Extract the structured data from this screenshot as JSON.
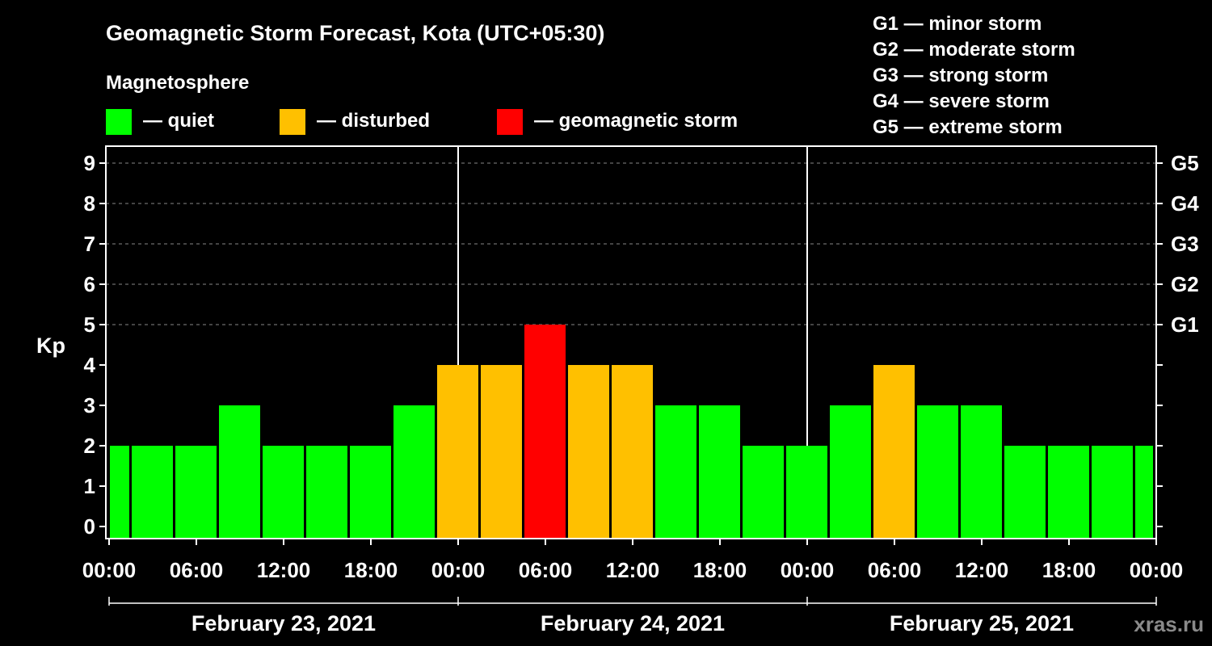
{
  "chart_data": {
    "type": "bar",
    "title": "Geomagnetic Storm Forecast, Kota (UTC+05:30)",
    "subtitle": "Magnetosphere",
    "ylabel": "Kp",
    "ylim": [
      0,
      9
    ],
    "y_ticks": [
      "0",
      "1",
      "2",
      "3",
      "4",
      "5",
      "6",
      "7",
      "8",
      "9"
    ],
    "right_axis_labels": [
      {
        "kp": 5,
        "label": "G1"
      },
      {
        "kp": 6,
        "label": "G2"
      },
      {
        "kp": 7,
        "label": "G3"
      },
      {
        "kp": 8,
        "label": "G4"
      },
      {
        "kp": 9,
        "label": "G5"
      }
    ],
    "x_ticks": [
      "00:00",
      "06:00",
      "12:00",
      "18:00",
      "00:00",
      "06:00",
      "12:00",
      "18:00",
      "00:00",
      "06:00",
      "12:00",
      "18:00",
      "00:00"
    ],
    "dates": [
      "February 23, 2021",
      "February 24, 2021",
      "February 25, 2021"
    ],
    "legend": [
      {
        "label": "— quiet",
        "color": "#00ff00"
      },
      {
        "label": "— disturbed",
        "color": "#ffc000"
      },
      {
        "label": "— geomagnetic storm",
        "color": "#ff0000"
      }
    ],
    "storm_scale": [
      "G1 — minor storm",
      "G2 — moderate storm",
      "G3 — strong storm",
      "G4 — severe storm",
      "G5 — extreme storm"
    ],
    "bars": [
      {
        "start": -1.5,
        "end": 1.5,
        "kp": 2,
        "level": "quiet"
      },
      {
        "start": 1.5,
        "end": 4.5,
        "kp": 2,
        "level": "quiet"
      },
      {
        "start": 4.5,
        "end": 7.5,
        "kp": 2,
        "level": "quiet"
      },
      {
        "start": 7.5,
        "end": 10.5,
        "kp": 3,
        "level": "quiet"
      },
      {
        "start": 10.5,
        "end": 13.5,
        "kp": 2,
        "level": "quiet"
      },
      {
        "start": 13.5,
        "end": 16.5,
        "kp": 2,
        "level": "quiet"
      },
      {
        "start": 16.5,
        "end": 19.5,
        "kp": 2,
        "level": "quiet"
      },
      {
        "start": 19.5,
        "end": 22.5,
        "kp": 3,
        "level": "quiet"
      },
      {
        "start": 22.5,
        "end": 25.5,
        "kp": 4,
        "level": "disturbed"
      },
      {
        "start": 25.5,
        "end": 28.5,
        "kp": 4,
        "level": "disturbed"
      },
      {
        "start": 28.5,
        "end": 31.5,
        "kp": 5,
        "level": "storm"
      },
      {
        "start": 31.5,
        "end": 34.5,
        "kp": 4,
        "level": "disturbed"
      },
      {
        "start": 34.5,
        "end": 37.5,
        "kp": 4,
        "level": "disturbed"
      },
      {
        "start": 37.5,
        "end": 40.5,
        "kp": 3,
        "level": "quiet"
      },
      {
        "start": 40.5,
        "end": 43.5,
        "kp": 3,
        "level": "quiet"
      },
      {
        "start": 43.5,
        "end": 46.5,
        "kp": 2,
        "level": "quiet"
      },
      {
        "start": 46.5,
        "end": 49.5,
        "kp": 2,
        "level": "quiet"
      },
      {
        "start": 49.5,
        "end": 52.5,
        "kp": 3,
        "level": "quiet"
      },
      {
        "start": 52.5,
        "end": 55.5,
        "kp": 4,
        "level": "disturbed"
      },
      {
        "start": 55.5,
        "end": 58.5,
        "kp": 3,
        "level": "quiet"
      },
      {
        "start": 58.5,
        "end": 61.5,
        "kp": 3,
        "level": "quiet"
      },
      {
        "start": 61.5,
        "end": 64.5,
        "kp": 2,
        "level": "quiet"
      },
      {
        "start": 64.5,
        "end": 67.5,
        "kp": 2,
        "level": "quiet"
      },
      {
        "start": 67.5,
        "end": 70.5,
        "kp": 2,
        "level": "quiet"
      },
      {
        "start": 70.5,
        "end": 73.5,
        "kp": 2,
        "level": "quiet"
      }
    ],
    "x_range_hours": [
      0,
      72
    ],
    "level_colors": {
      "quiet": "#00ff00",
      "disturbed": "#ffc000",
      "storm": "#ff0000"
    },
    "watermark": "xras.ru"
  }
}
